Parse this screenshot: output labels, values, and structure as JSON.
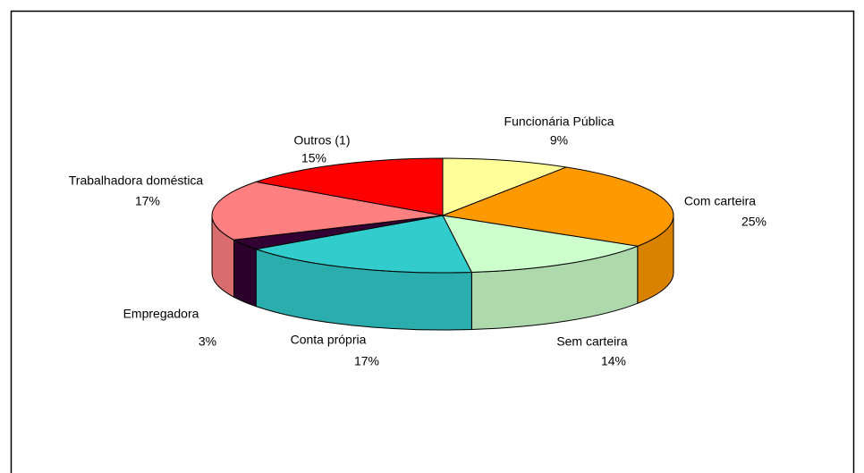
{
  "chart_data": {
    "type": "pie3d",
    "categories": [
      "Funcionária Pública",
      "Com carteira",
      "Sem carteira",
      "Conta própria",
      "Empregadora",
      "Trabalhadora doméstica",
      "Outros (1)"
    ],
    "values": [
      9,
      25,
      14,
      17,
      3,
      17,
      15
    ],
    "value_labels": [
      "9%",
      "25%",
      "14%",
      "17%",
      "3%",
      "17%",
      "15%"
    ],
    "colors": [
      "#FFFF99",
      "#FF9900",
      "#CCFFCC",
      "#33CCCC",
      "#330033",
      "#FF8080",
      "#FF0000"
    ]
  }
}
